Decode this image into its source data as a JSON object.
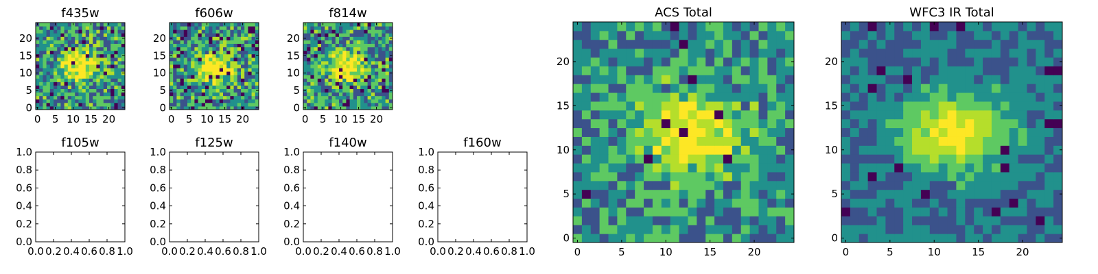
{
  "palette": [
    "#440154",
    "#3b528b",
    "#21918c",
    "#5ec962",
    "#b5de2b",
    "#fde725"
  ],
  "chart_data": [
    {
      "type": "heatmap",
      "title": "f435w",
      "grid_size": 25,
      "xlim": [
        -0.5,
        24.5
      ],
      "ylim": [
        -0.5,
        24.5
      ],
      "xticks": [
        0,
        5,
        10,
        15,
        20
      ],
      "yticks": [
        0,
        5,
        10,
        15,
        20
      ],
      "xtick_labels": [
        "0",
        "5",
        "10",
        "15",
        "20"
      ],
      "ytick_labels": [
        "0",
        "5",
        "10",
        "15",
        "20"
      ],
      "blob_center": [
        12,
        12
      ],
      "noise": "high",
      "data_note": "noisy 25x25 flux map"
    },
    {
      "type": "heatmap",
      "title": "f606w",
      "grid_size": 25,
      "xlim": [
        -0.5,
        24.5
      ],
      "ylim": [
        -0.5,
        24.5
      ],
      "xticks": [
        0,
        5,
        10,
        15,
        20
      ],
      "yticks": [
        0,
        5,
        10,
        15,
        20
      ],
      "xtick_labels": [
        "0",
        "5",
        "10",
        "15",
        "20"
      ],
      "ytick_labels": [
        "0",
        "5",
        "10",
        "15",
        "20"
      ],
      "blob_center": [
        12,
        11
      ],
      "noise": "high"
    },
    {
      "type": "heatmap",
      "title": "f814w",
      "grid_size": 25,
      "xlim": [
        -0.5,
        24.5
      ],
      "ylim": [
        -0.5,
        24.5
      ],
      "xticks": [
        0,
        5,
        10,
        15,
        20
      ],
      "yticks": [
        0,
        5,
        10,
        15,
        20
      ],
      "xtick_labels": [
        "0",
        "5",
        "10",
        "15",
        "20"
      ],
      "ytick_labels": [
        "0",
        "5",
        "10",
        "15",
        "20"
      ],
      "blob_center": [
        11,
        12
      ],
      "noise": "high"
    },
    {
      "type": "empty",
      "title": "f105w",
      "xlim": [
        0,
        1
      ],
      "ylim": [
        0,
        1
      ],
      "xtick_labels": [
        "0.0",
        "0.2",
        "0.4",
        "0.6",
        "0.8",
        "1.0"
      ],
      "ytick_labels": [
        "0.0",
        "0.2",
        "0.4",
        "0.6",
        "0.8",
        "1.0"
      ]
    },
    {
      "type": "empty",
      "title": "f125w",
      "xlim": [
        0,
        1
      ],
      "ylim": [
        0,
        1
      ],
      "xtick_labels": [
        "0.0",
        "0.2",
        "0.4",
        "0.6",
        "0.8",
        "1.0"
      ],
      "ytick_labels": [
        "0.0",
        "0.2",
        "0.4",
        "0.6",
        "0.8",
        "1.0"
      ]
    },
    {
      "type": "empty",
      "title": "f140w",
      "xlim": [
        0,
        1
      ],
      "ylim": [
        0,
        1
      ],
      "xtick_labels": [
        "0.0",
        "0.2",
        "0.4",
        "0.6",
        "0.8",
        "1.0"
      ],
      "ytick_labels": [
        "0.0",
        "0.2",
        "0.4",
        "0.6",
        "0.8",
        "1.0"
      ]
    },
    {
      "type": "empty",
      "title": "f160w",
      "xlim": [
        0,
        1
      ],
      "ylim": [
        0,
        1
      ],
      "xtick_labels": [
        "0.0",
        "0.2",
        "0.4",
        "0.6",
        "0.8",
        "1.0"
      ],
      "ytick_labels": [
        "0.0",
        "0.2",
        "0.4",
        "0.6",
        "0.8",
        "1.0"
      ]
    },
    {
      "type": "heatmap",
      "title": "ACS Total",
      "grid_size": 25,
      "xlim": [
        -0.5,
        24.5
      ],
      "ylim": [
        -0.5,
        24.5
      ],
      "xticks": [
        0,
        5,
        10,
        15,
        20
      ],
      "yticks": [
        0,
        5,
        10,
        15,
        20
      ],
      "xtick_labels": [
        "0",
        "5",
        "10",
        "15",
        "20"
      ],
      "ytick_labels": [
        "0",
        "5",
        "10",
        "15",
        "20"
      ],
      "blob_center": [
        13,
        12
      ],
      "noise": "medium"
    },
    {
      "type": "heatmap",
      "title": "WFC3 IR Total",
      "grid_size": 25,
      "xlim": [
        -0.5,
        24.5
      ],
      "ylim": [
        -0.5,
        24.5
      ],
      "xticks": [
        0,
        5,
        10,
        15,
        20
      ],
      "yticks": [
        0,
        5,
        10,
        15,
        20
      ],
      "xtick_labels": [
        "0",
        "5",
        "10",
        "15",
        "20"
      ],
      "ytick_labels": [
        "0",
        "5",
        "10",
        "15",
        "20"
      ],
      "blob_center": [
        12,
        12
      ],
      "noise": "low"
    }
  ]
}
